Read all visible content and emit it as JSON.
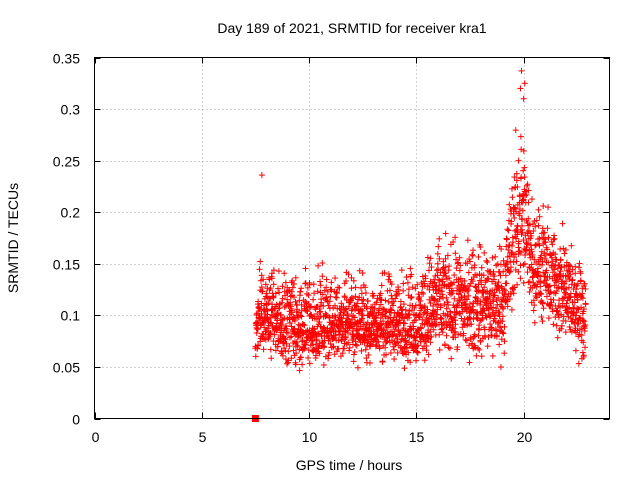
{
  "chart_data": {
    "type": "scatter",
    "title": "Day 189 of 2021, SRMTID for receiver kra1",
    "xlabel": "GPS time / hours",
    "ylabel": "SRMTID / TECUs",
    "xlim": [
      0,
      24
    ],
    "ylim": [
      0,
      0.35
    ],
    "x_ticks": [
      0,
      5,
      10,
      15,
      20
    ],
    "x_tick_labels": [
      "0",
      "5",
      "10",
      "15",
      "20"
    ],
    "y_ticks": [
      0,
      0.05,
      0.1,
      0.15,
      0.2,
      0.25,
      0.3,
      0.35
    ],
    "y_tick_labels": [
      "0",
      "0.05",
      "0.1",
      "0.15",
      "0.2",
      "0.25",
      "0.3",
      "0.35"
    ],
    "grid": true,
    "marker": "plus",
    "color": "#ff0000",
    "zero_marker": {
      "x": 7.5,
      "y": 0,
      "shape": "square"
    },
    "series": [
      {
        "name": "SRMTID",
        "x_range": [
          7.5,
          22.9
        ],
        "envelope": [
          {
            "x": 7.5,
            "min": 0.05,
            "max": 0.16,
            "mean": 0.09
          },
          {
            "x": 8.0,
            "min": 0.05,
            "max": 0.17,
            "mean": 0.1
          },
          {
            "x": 9.0,
            "min": 0.04,
            "max": 0.16,
            "mean": 0.09
          },
          {
            "x": 10.0,
            "min": 0.035,
            "max": 0.17,
            "mean": 0.085
          },
          {
            "x": 11.0,
            "min": 0.045,
            "max": 0.16,
            "mean": 0.09
          },
          {
            "x": 12.0,
            "min": 0.045,
            "max": 0.16,
            "mean": 0.095
          },
          {
            "x": 13.0,
            "min": 0.04,
            "max": 0.15,
            "mean": 0.09
          },
          {
            "x": 14.0,
            "min": 0.045,
            "max": 0.16,
            "mean": 0.09
          },
          {
            "x": 15.0,
            "min": 0.04,
            "max": 0.17,
            "mean": 0.09
          },
          {
            "x": 16.0,
            "min": 0.05,
            "max": 0.19,
            "mean": 0.11
          },
          {
            "x": 17.0,
            "min": 0.04,
            "max": 0.19,
            "mean": 0.11
          },
          {
            "x": 18.0,
            "min": 0.04,
            "max": 0.19,
            "mean": 0.11
          },
          {
            "x": 19.0,
            "min": 0.04,
            "max": 0.2,
            "mean": 0.11
          },
          {
            "x": 19.8,
            "min": 0.1,
            "max": 0.33,
            "mean": 0.2
          },
          {
            "x": 20.5,
            "min": 0.08,
            "max": 0.23,
            "mean": 0.15
          },
          {
            "x": 21.5,
            "min": 0.06,
            "max": 0.21,
            "mean": 0.13
          },
          {
            "x": 22.9,
            "min": 0.04,
            "max": 0.16,
            "mean": 0.1
          }
        ],
        "outliers": [
          {
            "x": 7.8,
            "y": 0.236
          },
          {
            "x": 19.9,
            "y": 0.337
          },
          {
            "x": 20.05,
            "y": 0.325
          },
          {
            "x": 19.85,
            "y": 0.32
          },
          {
            "x": 20.0,
            "y": 0.31
          }
        ]
      }
    ]
  }
}
